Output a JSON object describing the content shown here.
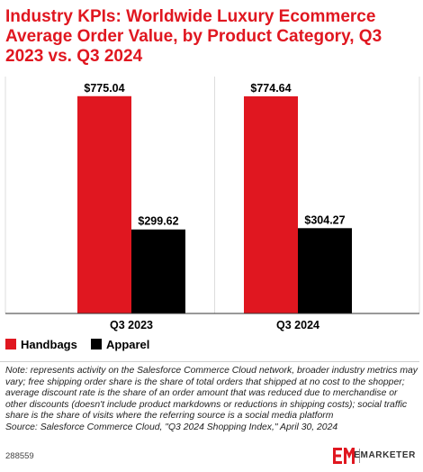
{
  "title": "Industry KPIs: Worldwide Luxury Ecommerce Average Order Value, by Product Category, Q3 2023 vs. Q3 2024",
  "colors": {
    "title": "#e01720",
    "handbags": "#e01720",
    "apparel": "#000000",
    "grid": "#dddddd"
  },
  "chart_data": {
    "type": "bar",
    "categories": [
      "Q3 2023",
      "Q3 2024"
    ],
    "series": [
      {
        "name": "Handbags",
        "values": [
          775.04,
          774.64
        ],
        "labels": [
          "$775.04",
          "$774.64"
        ],
        "color": "#e01720"
      },
      {
        "name": "Apparel",
        "values": [
          299.62,
          304.27
        ],
        "labels": [
          "$299.62",
          "$304.27"
        ],
        "color": "#000000"
      }
    ],
    "ylim": [
      0,
      800
    ],
    "legend": "bottom-left",
    "grid": false
  },
  "notes": {
    "note": "Note: represents activity on the Salesforce Commerce Cloud network, broader industry metrics may vary; free shipping order share is the share of total orders that shipped at no cost to the shopper; average discount rate is the share of an order amount that was reduced due to merchandise or other discounts (doesn't include product markdowns or reductions in shipping costs); social traffic share is the share of visits where the referring source is a social media platform",
    "source": "Source: Salesforce Commerce Cloud, \"Q3 2024 Shopping Index,\" April 30, 2024"
  },
  "footer": {
    "chart_id": "288559",
    "brand_name": "EMARKETER",
    "logo_icon": "em-logo-icon"
  }
}
